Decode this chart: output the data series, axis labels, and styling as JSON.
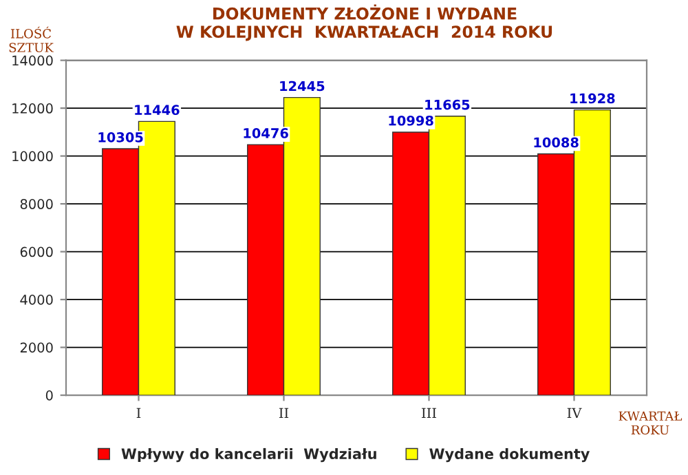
{
  "chart_data": {
    "type": "bar",
    "title": "DOKUMENTY ZŁOŻONE I WYDANE\nW KOLEJNYCH  KWARTAŁACH  2014 ROKU",
    "xlabel": "KWARTAŁ\nROKU",
    "ylabel": "ILOŚĆ\nSZTUK",
    "categories": [
      "I",
      "II",
      "III",
      "IV"
    ],
    "series": [
      {
        "name": "Wpływy do kancelarii  Wydziału",
        "color": "#ff0000",
        "values": [
          10305,
          10476,
          10998,
          10088
        ]
      },
      {
        "name": "Wydane dokumenty",
        "color": "#ffff00",
        "values": [
          11446,
          12445,
          11665,
          11928
        ]
      }
    ],
    "ylim": [
      0,
      14000
    ],
    "yticks": [
      0,
      2000,
      4000,
      6000,
      8000,
      10000,
      12000,
      14000
    ],
    "grid": "y",
    "legend": "bottom",
    "data_labels": true
  }
}
